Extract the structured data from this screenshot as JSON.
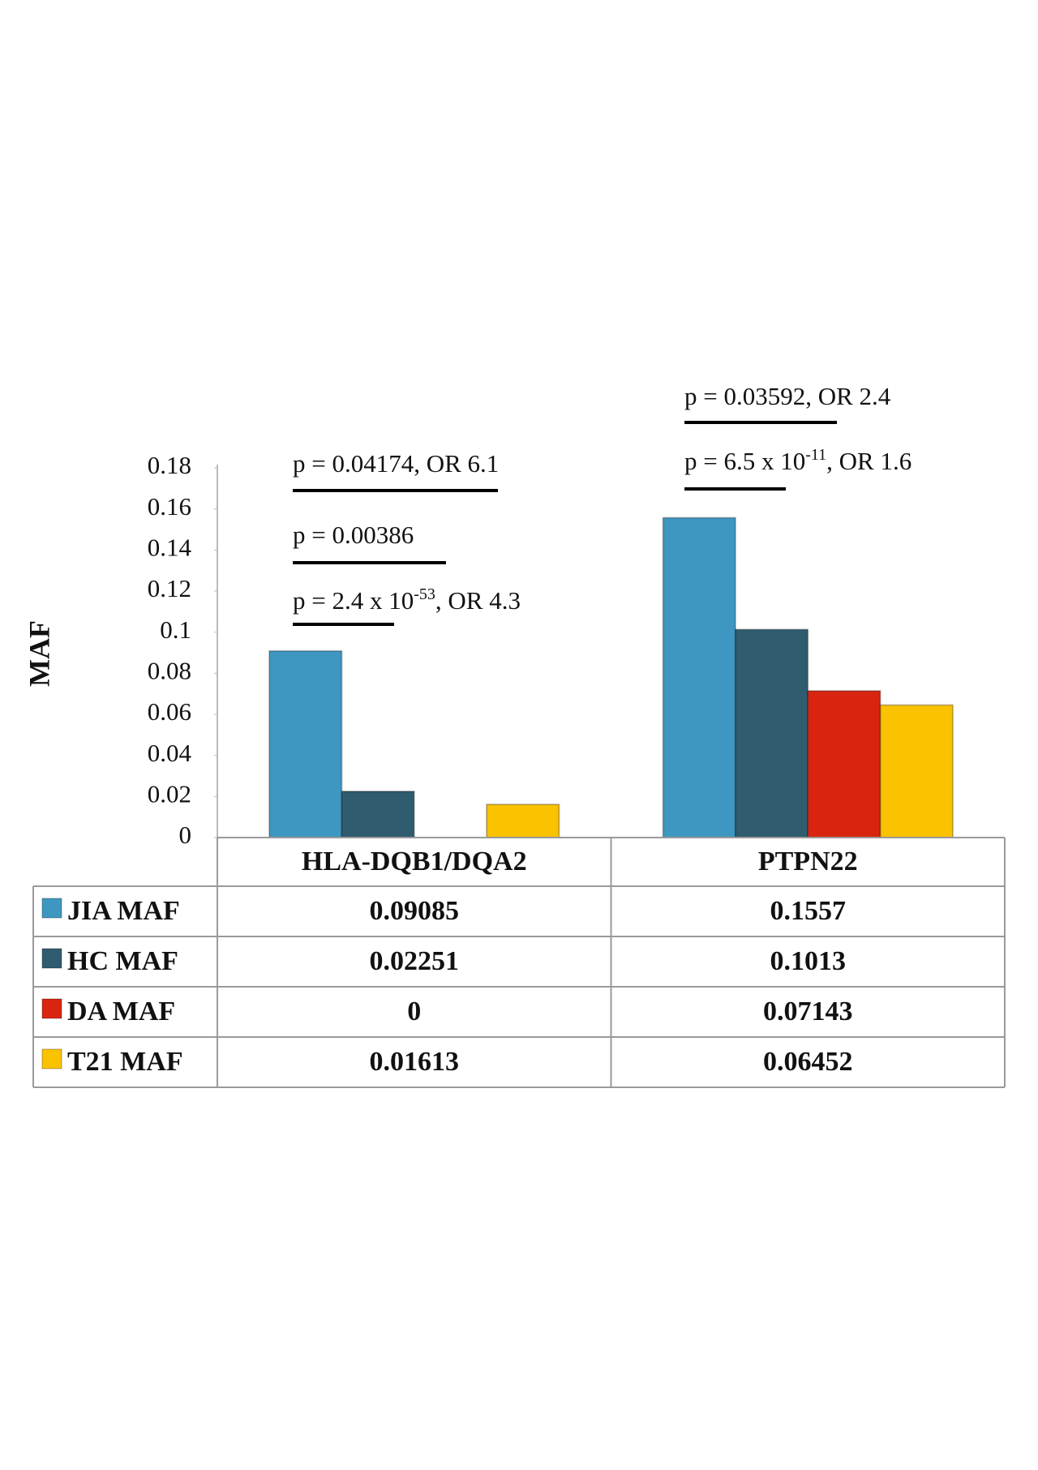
{
  "chart_data": {
    "type": "bar",
    "y_label": "MAF",
    "categories": [
      "HLA-DQB1/DQA2",
      "PTPN22"
    ],
    "series": [
      {
        "name": "JIA MAF",
        "color": "#3e97c0",
        "values": [
          0.09085,
          0.1557
        ]
      },
      {
        "name": "HC MAF",
        "color": "#2f5c6e",
        "values": [
          0.02251,
          0.1013
        ]
      },
      {
        "name": "DA MAF",
        "color": "#d92510",
        "values": [
          0,
          0.07143
        ]
      },
      {
        "name": "T21 MAF",
        "color": "#fbc200",
        "values": [
          0.01613,
          0.06452
        ]
      }
    ],
    "ylim": [
      0,
      0.18
    ],
    "yticks": [
      0,
      0.02,
      0.04,
      0.06,
      0.08,
      0.1,
      0.12,
      0.14,
      0.16,
      0.18
    ],
    "annotations": [
      {
        "text": "p = 0.04174, OR 6.1"
      },
      {
        "text": "p = 0.00386"
      },
      {
        "text": "p = 2.4 x 10",
        "sup": "-53",
        "after": ", OR 4.3"
      },
      {
        "text": "p = 0.03592, OR 2.4"
      },
      {
        "text": "p = 6.5 x 10",
        "sup": "-11",
        "after": ", OR 1.6"
      }
    ]
  }
}
